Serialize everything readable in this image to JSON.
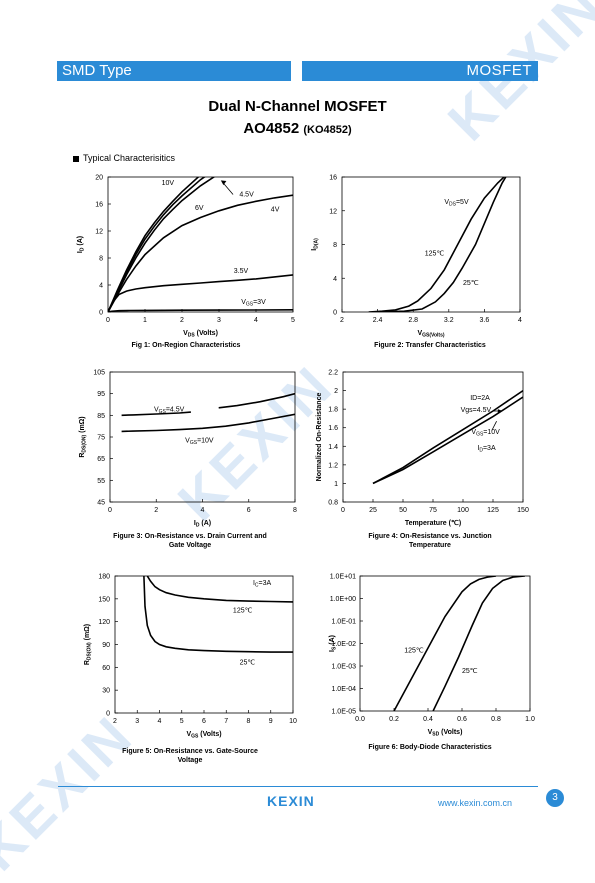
{
  "header": {
    "left": "SMD Type",
    "right": "MOSFET"
  },
  "title": {
    "line1": "Dual N-Channel MOSFET",
    "part": "AO4852",
    "alt": "(KO4852)"
  },
  "section": "Typical  Characterisitics",
  "watermark": "KEXIN",
  "footer": {
    "logo": "KEXIN",
    "url": "www.kexin.com.cn",
    "page": "3"
  },
  "chart_data": [
    {
      "type": "line",
      "id": "fig1",
      "title": "Fig 1: On-Region Characteristics",
      "xlabel": "V_DS (Volts)",
      "ylabel": "I_D (A)",
      "xlim": [
        0,
        5
      ],
      "ylim": [
        0,
        20
      ],
      "xticks": [
        0,
        1,
        2,
        3,
        4,
        5
      ],
      "yticks": [
        0,
        4,
        8,
        12,
        16,
        20
      ],
      "series": [
        {
          "name": "10V",
          "x": [
            0,
            0.25,
            0.5,
            0.75,
            1,
            1.25,
            1.5,
            1.75,
            2,
            2.5,
            3
          ],
          "y": [
            0,
            3.2,
            6.2,
            8.9,
            11.3,
            13.2,
            14.9,
            16.4,
            17.8,
            20.3,
            22
          ]
        },
        {
          "name": "6V",
          "x": [
            0,
            0.25,
            0.5,
            0.75,
            1,
            1.25,
            1.5,
            1.75,
            2,
            2.5,
            3
          ],
          "y": [
            0,
            3,
            5.9,
            8.5,
            10.8,
            12.7,
            14.4,
            15.9,
            17.2,
            19.6,
            21.5
          ]
        },
        {
          "name": "4.5V",
          "x": [
            0,
            0.25,
            0.5,
            0.75,
            1,
            1.25,
            1.5,
            1.75,
            2,
            2.5,
            3
          ],
          "y": [
            0,
            2.8,
            5.5,
            8,
            10.2,
            12.1,
            13.8,
            15.2,
            16.5,
            18.7,
            20.5
          ]
        },
        {
          "name": "4V",
          "x": [
            0,
            0.25,
            0.5,
            0.75,
            1,
            1.5,
            2,
            2.5,
            3,
            3.5,
            4,
            4.5,
            5
          ],
          "y": [
            0,
            2.5,
            4.8,
            6.8,
            8.5,
            11,
            12.8,
            14,
            15,
            15.8,
            16.4,
            16.9,
            17.3
          ]
        },
        {
          "name": "3.5V",
          "x": [
            0,
            0.15,
            0.3,
            0.5,
            0.75,
            1,
            1.5,
            2,
            2.5,
            3,
            3.5,
            4,
            4.5,
            5
          ],
          "y": [
            0,
            1.6,
            2.6,
            3.1,
            3.4,
            3.6,
            3.9,
            4.1,
            4.3,
            4.5,
            4.7,
            4.9,
            5.2,
            5.5
          ]
        },
        {
          "name": "V_GS=3V",
          "x": [
            0,
            0.1,
            0.3,
            0.6,
            1,
            2,
            3,
            4,
            5
          ],
          "y": [
            0,
            0.1,
            0.2,
            0.22,
            0.24,
            0.26,
            0.28,
            0.3,
            0.32
          ]
        }
      ]
    },
    {
      "type": "line",
      "id": "fig2",
      "title": "Figure 2: Transfer Characteristics",
      "xlabel": "V_GS(Volts)",
      "ylabel": "I_D(A)",
      "xlim": [
        2,
        4
      ],
      "ylim": [
        0,
        16
      ],
      "xticks": [
        2,
        2.4,
        2.8,
        3.2,
        3.6,
        4
      ],
      "yticks": [
        0,
        4,
        8,
        12,
        16
      ],
      "annotation": "V_DS=5V",
      "series": [
        {
          "name": "125℃",
          "x": [
            2.3,
            2.45,
            2.6,
            2.75,
            2.85,
            3.0,
            3.15,
            3.3,
            3.45,
            3.6,
            3.75,
            3.82
          ],
          "y": [
            0,
            0.1,
            0.25,
            0.7,
            1.3,
            2.8,
            5,
            8,
            11,
            13.5,
            15.3,
            16
          ]
        },
        {
          "name": "25℃",
          "x": [
            2.4,
            2.7,
            2.9,
            3.05,
            3.15,
            3.25,
            3.35,
            3.5,
            3.6,
            3.7,
            3.8,
            3.84
          ],
          "y": [
            0,
            0.1,
            0.35,
            1.2,
            2.2,
            3.5,
            5.2,
            8,
            10.5,
            13,
            15.3,
            16
          ]
        }
      ]
    },
    {
      "type": "line",
      "id": "fig3",
      "title": "Figure 3: On-Resistance vs. Drain Current and Gate Voltage",
      "xlabel": "I_D (A)",
      "ylabel": "R_DS(ON) (mΩ)",
      "xlim": [
        0,
        8
      ],
      "ylim": [
        45,
        105
      ],
      "xticks": [
        0,
        2,
        4,
        6,
        8
      ],
      "yticks": [
        45,
        55,
        65,
        75,
        85,
        95,
        105
      ],
      "series": [
        {
          "name": "V_GS=4.5V",
          "x": [
            0.5,
            1,
            2,
            3,
            3.5
          ],
          "y": [
            85,
            85.2,
            85.6,
            86.1,
            86.5
          ],
          "x2": [
            4.7,
            5.5,
            6.5,
            7.5,
            8
          ],
          "y2": [
            88.5,
            89.5,
            91.3,
            93.6,
            95
          ]
        },
        {
          "name": "V_GS=10V",
          "x": [
            0.5,
            1,
            2,
            3,
            4,
            5,
            6,
            7,
            8
          ],
          "y": [
            77.6,
            77.7,
            78,
            78.4,
            79,
            80,
            81.5,
            83.5,
            85.5
          ]
        }
      ]
    },
    {
      "type": "line",
      "id": "fig4",
      "title": "Figure 4: On-Resistance vs. Junction Temperature",
      "xlabel": "Temperature (℃)",
      "ylabel": "Normalized On-Resistance",
      "xlim": [
        0,
        150
      ],
      "ylim": [
        0.8,
        2.2
      ],
      "xticks": [
        0,
        25,
        50,
        75,
        100,
        125,
        150
      ],
      "yticks": [
        0.8,
        1,
        1.2,
        1.4,
        1.6,
        1.8,
        2,
        2.2
      ],
      "annotations": [
        "ID=2A",
        "Vgs=4.5V",
        "V_GS=10V",
        "I_D=3A"
      ],
      "series": [
        {
          "name": "V_GS=4.5V",
          "x": [
            25,
            50,
            75,
            100,
            125,
            150
          ],
          "y": [
            1,
            1.17,
            1.38,
            1.58,
            1.78,
            2
          ]
        },
        {
          "name": "V_GS=10V",
          "x": [
            25,
            50,
            75,
            100,
            125,
            150
          ],
          "y": [
            1,
            1.15,
            1.34,
            1.53,
            1.72,
            1.93
          ]
        }
      ]
    },
    {
      "type": "line",
      "id": "fig5",
      "title": "Figure 5: On-Resistance vs. Gate-Source Voltage",
      "xlabel": "V_GS (Volts)",
      "ylabel": "R_DS(ON) (mΩ)",
      "xlim": [
        2,
        10
      ],
      "ylim": [
        0,
        180
      ],
      "xticks": [
        2,
        3,
        4,
        5,
        6,
        7,
        8,
        9,
        10
      ],
      "yticks": [
        0,
        30,
        60,
        90,
        120,
        150,
        180
      ],
      "annotation": "I_C=3A",
      "series": [
        {
          "name": "125℃",
          "x": [
            3.45,
            3.6,
            3.8,
            4.0,
            4.3,
            4.7,
            5.3,
            6,
            7,
            8,
            9,
            10
          ],
          "y": [
            180,
            173,
            166,
            162,
            158,
            155,
            152,
            150,
            148,
            147,
            146.5,
            146
          ]
        },
        {
          "name": "25℃",
          "x": [
            3.3,
            3.35,
            3.45,
            3.6,
            3.8,
            4.0,
            4.3,
            4.7,
            5.3,
            6,
            7,
            8,
            9,
            10
          ],
          "y": [
            180,
            140,
            115,
            102,
            94,
            90,
            87,
            85,
            83,
            82,
            81,
            80.5,
            80,
            80
          ]
        }
      ]
    },
    {
      "type": "line",
      "id": "fig6",
      "title": "Figure 6: Body-Diode Characteristics",
      "xlabel": "V_SD (Volts)",
      "ylabel": "I_S (A)",
      "xlim": [
        0,
        1
      ],
      "ylim": [
        -5,
        1
      ],
      "yscale": "log",
      "xticks": [
        0.0,
        0.2,
        0.4,
        0.6,
        0.8,
        1.0
      ],
      "ytick_labels": [
        "1.0E-05",
        "1.0E-04",
        "1.0E-03",
        "1.0E-02",
        "1.0E-01",
        "1.0E+00",
        "1.0E+01"
      ],
      "series": [
        {
          "name": "125℃",
          "x": [
            0.2,
            0.3,
            0.4,
            0.5,
            0.6,
            0.65,
            0.7,
            0.75,
            0.8
          ],
          "y": [
            -5,
            -3.6,
            -2.2,
            -0.8,
            0.3,
            0.65,
            0.85,
            0.95,
            1
          ]
        },
        {
          "name": "25℃",
          "x": [
            0.43,
            0.5,
            0.58,
            0.66,
            0.72,
            0.78,
            0.84,
            0.9,
            0.97
          ],
          "y": [
            -5,
            -3.9,
            -2.6,
            -1.2,
            -0.2,
            0.45,
            0.8,
            0.95,
            1
          ]
        }
      ]
    }
  ]
}
